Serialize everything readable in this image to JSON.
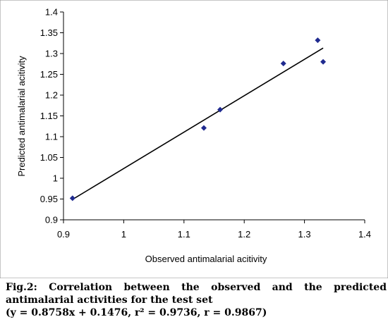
{
  "chart_data": {
    "type": "scatter",
    "title": "",
    "xlabel": "Observed antimalarial acitivity",
    "ylabel": "Predicted antimalarial acitivity",
    "xlim": [
      0.9,
      1.4
    ],
    "ylim": [
      0.9,
      1.4
    ],
    "x_ticks": [
      "0.9",
      "1",
      "1.1",
      "1.2",
      "1.3",
      "1.4"
    ],
    "y_ticks": [
      "0.9",
      "0.95",
      "1",
      "1.05",
      "1.1",
      "1.15",
      "1.2",
      "1.25",
      "1.3",
      "1.35",
      "1.4"
    ],
    "x_tick_values": [
      0.9,
      1.0,
      1.1,
      1.2,
      1.3,
      1.4
    ],
    "y_tick_values": [
      0.9,
      0.95,
      1.0,
      1.05,
      1.1,
      1.15,
      1.2,
      1.25,
      1.3,
      1.35,
      1.4
    ],
    "grid": false,
    "legend": "none",
    "series": [
      {
        "points": [
          {
            "x": 0.915,
            "y": 0.952
          },
          {
            "x": 1.133,
            "y": 1.121
          },
          {
            "x": 1.16,
            "y": 1.165
          },
          {
            "x": 1.265,
            "y": 1.276
          },
          {
            "x": 1.322,
            "y": 1.332
          },
          {
            "x": 1.331,
            "y": 1.28
          }
        ],
        "color": "#1f2a8f"
      }
    ],
    "trendline": {
      "slope": 0.8758,
      "intercept": 0.1476,
      "x_range": [
        0.915,
        1.331
      ],
      "color": "#000000"
    }
  },
  "caption": {
    "line1": "Fig.2: Correlation between the observed and the predicted",
    "line2": "antimalarial activities for the test set",
    "line3": "(y = 0.8758x + 0.1476, r² = 0.9736, r = 0.9867)"
  }
}
